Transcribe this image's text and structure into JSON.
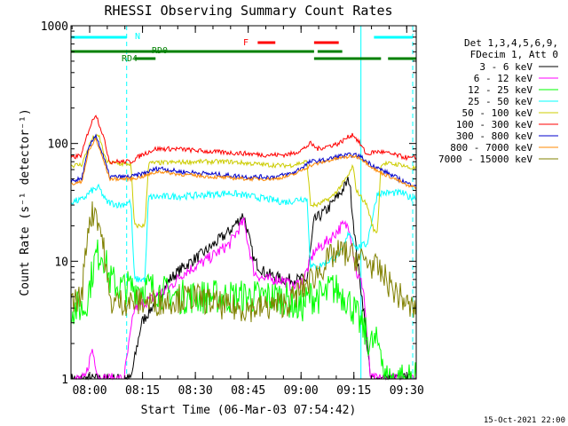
{
  "chart_data": {
    "type": "line",
    "title": "RHESSI Observing Summary Count Rates",
    "xlabel": "Start Time (06-Mar-03 07:54:42)",
    "ylabel": "Count Rate (s⁻¹ detector⁻¹)",
    "y_scale": "log",
    "ylim": [
      1,
      1000
    ],
    "xlim": [
      0,
      98
    ],
    "x_unit": "minutes after 07:54:42",
    "x_ticks": [
      {
        "t": 5.3,
        "label": "08:00"
      },
      {
        "t": 20.3,
        "label": "08:15"
      },
      {
        "t": 35.3,
        "label": "08:30"
      },
      {
        "t": 50.3,
        "label": "08:45"
      },
      {
        "t": 65.3,
        "label": "09:00"
      },
      {
        "t": 80.3,
        "label": "09:15"
      },
      {
        "t": 95.3,
        "label": "09:30"
      }
    ],
    "y_ticks": [
      {
        "v": 1,
        "label": "1"
      },
      {
        "v": 10,
        "label": "10"
      },
      {
        "v": 100,
        "label": "100"
      },
      {
        "v": 1000,
        "label": "1000"
      }
    ],
    "legend_header": [
      "Det 1,3,4,5,6,9,",
      "FDecim 1, Att 0"
    ],
    "legend_placement": "right",
    "series": [
      {
        "name": "3 - 6 keV",
        "color": "#000000",
        "noise": 0.05,
        "points": [
          [
            0,
            1
          ],
          [
            17,
            1
          ],
          [
            20,
            3
          ],
          [
            25,
            5
          ],
          [
            28,
            7
          ],
          [
            32,
            9
          ],
          [
            38,
            12
          ],
          [
            45,
            18
          ],
          [
            49,
            25
          ],
          [
            52,
            10
          ],
          [
            55,
            8
          ],
          [
            60,
            7
          ],
          [
            63,
            7
          ],
          [
            67,
            7
          ],
          [
            69,
            22
          ],
          [
            73,
            28
          ],
          [
            77,
            40
          ],
          [
            79,
            50
          ],
          [
            81,
            12
          ],
          [
            83,
            4
          ],
          [
            85,
            1
          ],
          [
            98,
            1
          ]
        ]
      },
      {
        "name": "6 - 12 keV",
        "color": "#ff00ff",
        "noise": 0.05,
        "points": [
          [
            0,
            1
          ],
          [
            4,
            1
          ],
          [
            6,
            1.8
          ],
          [
            8,
            1
          ],
          [
            15,
            1
          ],
          [
            18,
            4
          ],
          [
            24,
            5
          ],
          [
            28,
            6
          ],
          [
            32,
            8
          ],
          [
            38,
            10
          ],
          [
            45,
            14
          ],
          [
            49,
            22
          ],
          [
            52,
            8
          ],
          [
            55,
            7
          ],
          [
            60,
            7
          ],
          [
            63,
            6
          ],
          [
            66,
            7
          ],
          [
            69,
            12
          ],
          [
            73,
            15
          ],
          [
            77,
            20
          ],
          [
            79,
            20
          ],
          [
            81,
            8
          ],
          [
            83,
            6
          ],
          [
            85,
            1
          ],
          [
            98,
            1
          ]
        ]
      },
      {
        "name": "12 - 25 keV",
        "color": "#00ff00",
        "noise": 0.15,
        "points": [
          [
            0,
            4
          ],
          [
            4,
            4
          ],
          [
            7,
            11
          ],
          [
            9,
            12
          ],
          [
            11,
            7
          ],
          [
            14,
            6
          ],
          [
            17,
            6
          ],
          [
            20,
            6
          ],
          [
            22,
            6
          ],
          [
            30,
            5
          ],
          [
            45,
            5
          ],
          [
            55,
            5
          ],
          [
            60,
            5
          ],
          [
            65,
            4
          ],
          [
            68,
            5
          ],
          [
            72,
            5
          ],
          [
            74,
            6
          ],
          [
            78,
            5
          ],
          [
            80,
            4
          ],
          [
            82,
            3
          ],
          [
            85,
            2
          ],
          [
            88,
            2
          ],
          [
            89,
            1
          ],
          [
            98,
            1
          ]
        ]
      },
      {
        "name": "25 - 50 keV",
        "color": "#00ffff",
        "noise": 0.03,
        "points": [
          [
            0,
            32
          ],
          [
            3,
            33
          ],
          [
            6,
            40
          ],
          [
            8,
            42
          ],
          [
            10,
            32
          ],
          [
            14,
            30
          ],
          [
            17,
            32
          ],
          [
            18,
            7
          ],
          [
            21,
            7
          ],
          [
            22,
            35
          ],
          [
            35,
            36
          ],
          [
            45,
            38
          ],
          [
            55,
            34
          ],
          [
            60,
            32
          ],
          [
            62,
            32
          ],
          [
            65,
            34
          ],
          [
            67,
            34
          ],
          [
            68,
            9
          ],
          [
            70,
            9
          ],
          [
            73,
            10
          ],
          [
            77,
            12
          ],
          [
            79,
            18
          ],
          [
            81,
            13
          ],
          [
            84,
            14
          ],
          [
            87,
            38
          ],
          [
            94,
            38
          ],
          [
            96,
            35
          ]
        ]
      },
      {
        "name": "50 - 100 keV",
        "color": "#cccc00",
        "noise": 0.02,
        "points": [
          [
            0,
            65
          ],
          [
            3,
            66
          ],
          [
            6,
            110
          ],
          [
            8,
            115
          ],
          [
            10,
            70
          ],
          [
            14,
            67
          ],
          [
            17,
            67
          ],
          [
            18,
            20
          ],
          [
            21,
            20
          ],
          [
            22,
            68
          ],
          [
            35,
            70
          ],
          [
            45,
            70
          ],
          [
            55,
            66
          ],
          [
            60,
            65
          ],
          [
            62,
            65
          ],
          [
            67,
            70
          ],
          [
            68,
            30
          ],
          [
            70,
            30
          ],
          [
            74,
            35
          ],
          [
            77,
            45
          ],
          [
            79,
            55
          ],
          [
            80,
            65
          ],
          [
            81,
            40
          ],
          [
            84,
            30
          ],
          [
            86,
            18
          ],
          [
            87,
            18
          ],
          [
            88,
            68
          ],
          [
            94,
            66
          ],
          [
            96,
            62
          ]
        ]
      },
      {
        "name": "100 - 300 keV",
        "color": "#ff0000",
        "noise": 0.02,
        "points": [
          [
            0,
            75
          ],
          [
            3,
            80
          ],
          [
            5,
            130
          ],
          [
            7,
            180
          ],
          [
            9,
            120
          ],
          [
            11,
            70
          ],
          [
            17,
            70
          ],
          [
            20,
            80
          ],
          [
            24,
            90
          ],
          [
            30,
            90
          ],
          [
            40,
            85
          ],
          [
            50,
            82
          ],
          [
            55,
            80
          ],
          [
            60,
            80
          ],
          [
            63,
            82
          ],
          [
            66,
            90
          ],
          [
            68,
            100
          ],
          [
            70,
            90
          ],
          [
            73,
            95
          ],
          [
            76,
            100
          ],
          [
            78,
            110
          ],
          [
            80,
            120
          ],
          [
            82,
            100
          ],
          [
            84,
            80
          ],
          [
            86,
            85
          ],
          [
            88,
            85
          ],
          [
            96,
            75
          ]
        ]
      },
      {
        "name": "300 - 800 keV",
        "color": "#0000cc",
        "noise": 0.02,
        "points": [
          [
            0,
            48
          ],
          [
            3,
            50
          ],
          [
            5,
            90
          ],
          [
            7,
            120
          ],
          [
            9,
            80
          ],
          [
            11,
            52
          ],
          [
            17,
            52
          ],
          [
            20,
            55
          ],
          [
            25,
            62
          ],
          [
            30,
            58
          ],
          [
            40,
            55
          ],
          [
            50,
            52
          ],
          [
            58,
            52
          ],
          [
            63,
            56
          ],
          [
            68,
            70
          ],
          [
            72,
            72
          ],
          [
            76,
            78
          ],
          [
            80,
            80
          ],
          [
            82,
            78
          ],
          [
            84,
            70
          ],
          [
            87,
            62
          ],
          [
            92,
            52
          ],
          [
            96,
            45
          ]
        ]
      },
      {
        "name": "800 - 7000 keV",
        "color": "#ff8800",
        "noise": 0.015,
        "points": [
          [
            0,
            45
          ],
          [
            3,
            47
          ],
          [
            5,
            85
          ],
          [
            7,
            110
          ],
          [
            9,
            75
          ],
          [
            11,
            50
          ],
          [
            17,
            50
          ],
          [
            20,
            52
          ],
          [
            25,
            58
          ],
          [
            30,
            55
          ],
          [
            40,
            52
          ],
          [
            50,
            50
          ],
          [
            58,
            50
          ],
          [
            63,
            54
          ],
          [
            68,
            65
          ],
          [
            72,
            70
          ],
          [
            76,
            75
          ],
          [
            80,
            78
          ],
          [
            82,
            76
          ],
          [
            84,
            68
          ],
          [
            87,
            58
          ],
          [
            92,
            50
          ],
          [
            96,
            43
          ]
        ]
      },
      {
        "name": "7000 - 15000 keV",
        "color": "#808000",
        "noise": 0.12,
        "points": [
          [
            0,
            4.5
          ],
          [
            3,
            5
          ],
          [
            5,
            22
          ],
          [
            7,
            28
          ],
          [
            9,
            15
          ],
          [
            11,
            4.5
          ],
          [
            17,
            4.5
          ],
          [
            25,
            4.5
          ],
          [
            35,
            5
          ],
          [
            45,
            4
          ],
          [
            55,
            4
          ],
          [
            62,
            4.5
          ],
          [
            66,
            6
          ],
          [
            70,
            8
          ],
          [
            74,
            11
          ],
          [
            77,
            12
          ],
          [
            80,
            11
          ],
          [
            84,
            10
          ],
          [
            88,
            8
          ],
          [
            92,
            5.5
          ],
          [
            95,
            4.5
          ],
          [
            96,
            4
          ]
        ]
      }
    ],
    "attenuator_bars": [
      {
        "label": "N",
        "color": "#00ffff",
        "segments": [
          [
            0,
            15.8
          ],
          [
            86,
            97
          ]
        ]
      },
      {
        "label": "F",
        "color": "#ff0000",
        "segments": [
          [
            53,
            58
          ],
          [
            69,
            76
          ]
        ]
      },
      {
        "label": "RD0",
        "color": "#008000",
        "segments": [
          [
            0,
            69
          ],
          [
            70,
            77
          ]
        ]
      },
      {
        "label": "RD4",
        "color": "#008000",
        "segments": [
          [
            18,
            24
          ],
          [
            69,
            88
          ],
          [
            90,
            98
          ]
        ]
      }
    ],
    "vlines": [
      {
        "t": 15.8,
        "color": "#00ffff",
        "style": "dashed"
      },
      {
        "t": 82.3,
        "color": "#00ffff",
        "style": "solid"
      },
      {
        "t": 97,
        "color": "#00ffff",
        "style": "dashed"
      }
    ],
    "footer_date": "15-Oct-2021 22:00"
  }
}
